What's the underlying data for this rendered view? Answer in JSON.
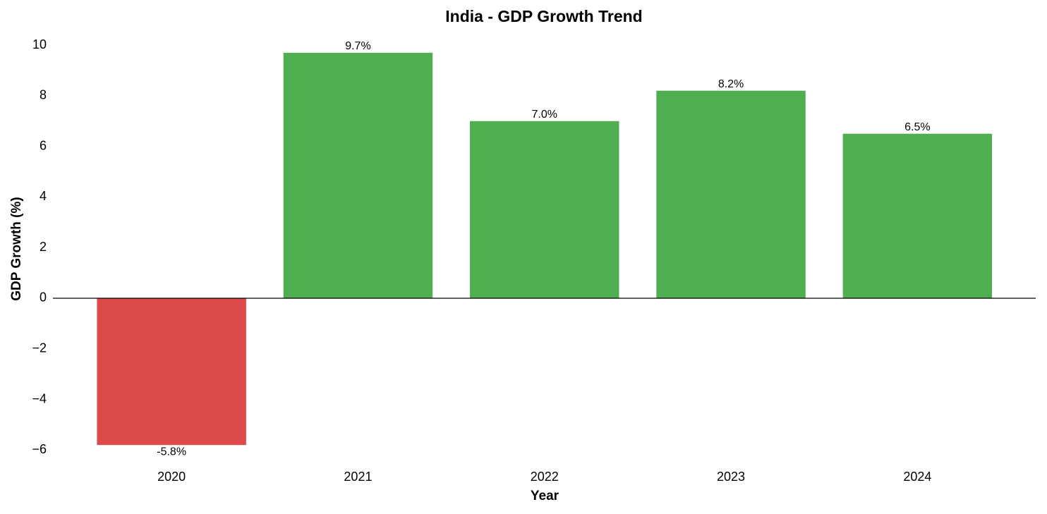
{
  "chart_data": {
    "type": "bar",
    "title": "India - GDP Growth Trend",
    "x_label": "Year",
    "y_label": "GDP Growth (%)",
    "categories": [
      "2020",
      "2021",
      "2022",
      "2023",
      "2024"
    ],
    "values": [
      -5.8,
      9.7,
      7.0,
      8.2,
      6.5
    ],
    "value_labels": [
      "-5.8%",
      "9.7%",
      "7.0%",
      "8.2%",
      "6.5%"
    ],
    "colors": [
      "#dc4a4a",
      "#4fae4f",
      "#4fae4f",
      "#4fae4f",
      "#4fae4f"
    ],
    "ylim": [
      -6.575,
      10.475
    ],
    "yticks": [
      {
        "value": -6,
        "label": "−6"
      },
      {
        "value": -4,
        "label": "−4"
      },
      {
        "value": -2,
        "label": "−2"
      },
      0,
      2,
      4,
      6,
      8,
      10
    ],
    "grid": false
  }
}
